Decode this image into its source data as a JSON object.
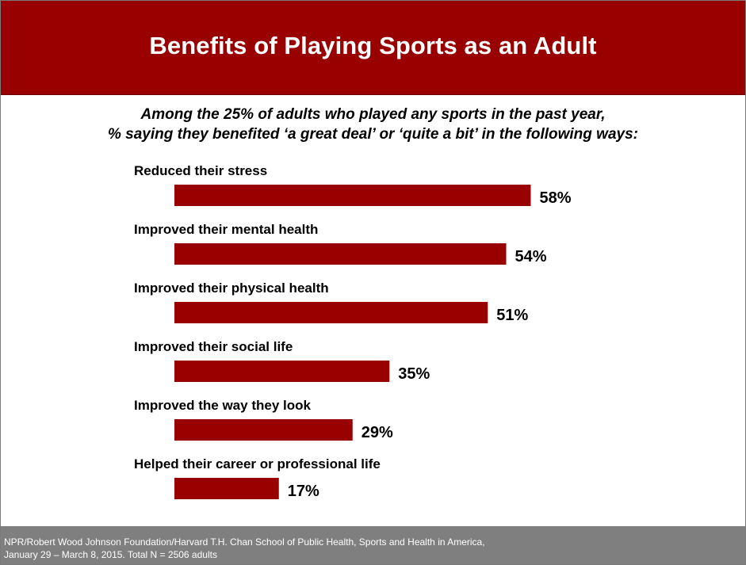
{
  "header": {
    "title": "Benefits of Playing Sports as an Adult"
  },
  "subtitle": {
    "line1": "Among the 25% of adults who played any sports in the past year,",
    "line2": "% saying they benefited ‘a great deal’ or ‘quite a bit’ in the following ways:"
  },
  "chart_data": {
    "type": "bar",
    "orientation": "horizontal",
    "categories": [
      "Reduced their stress",
      "Improved their mental health",
      "Improved their physical health",
      "Improved their social life",
      "Improved the way they look",
      "Helped their career or professional life"
    ],
    "values": [
      58,
      54,
      51,
      35,
      29,
      17
    ],
    "value_labels": [
      "58%",
      "54%",
      "51%",
      "35%",
      "29%",
      "17%"
    ],
    "unit": "%",
    "bar_color": "#990000",
    "xlim": [
      0,
      100
    ],
    "grid": false,
    "legend": "none"
  },
  "footer": {
    "line1": "NPR/Robert Wood Johnson Foundation/Harvard T.H. Chan School of Public Health, Sports and Health in America,",
    "line2": "January 29 – March 8, 2015. Total N = 2506 adults"
  }
}
